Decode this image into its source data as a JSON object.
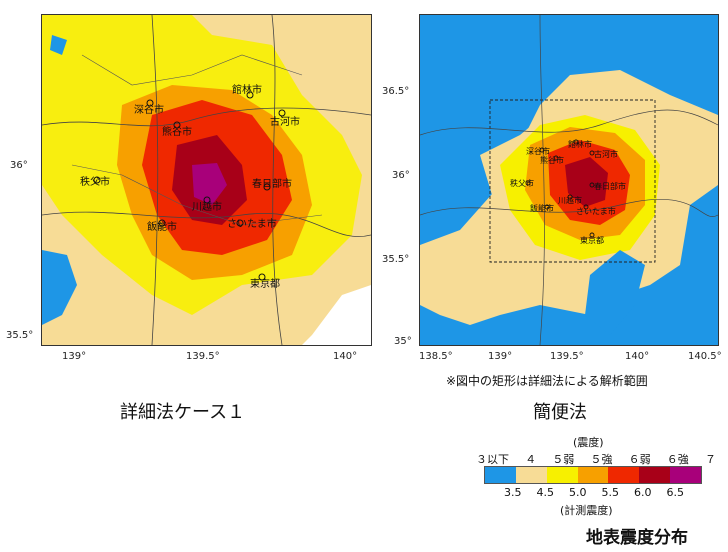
{
  "left_panel": {
    "caption": "詳細法ケース１",
    "lat_ticks": [
      "36°",
      "35.5°"
    ],
    "lon_ticks": [
      "139°",
      "139.5°",
      "140°"
    ],
    "cities": [
      "館林市",
      "深谷市",
      "古河市",
      "熊谷市",
      "秩父市",
      "春日部市",
      "川越市",
      "飯能市",
      "さいたま市",
      "東京都"
    ]
  },
  "right_panel": {
    "caption": "簡便法",
    "note": "※図中の矩形は詳細法による解析範囲",
    "lat_ticks": [
      "36.5°",
      "36°",
      "35.5°",
      "35°"
    ],
    "lon_ticks": [
      "138.5°",
      "139°",
      "139.5°",
      "140°",
      "140.5°"
    ],
    "cities": [
      "館林市",
      "深谷市",
      "古河市",
      "熊谷市",
      "秩父市",
      "春日部市",
      "川越市",
      "飯能市",
      "さいたま市",
      "東京都"
    ]
  },
  "legend": {
    "top_title": "(震度)",
    "intensity_classes": [
      "３以下",
      "４",
      "５弱",
      "５強",
      "６弱",
      "６強",
      "７"
    ],
    "boundary_values": [
      "3.5",
      "4.5",
      "5.0",
      "5.5",
      "6.0",
      "6.5"
    ],
    "bottom_title": "(計測震度)",
    "colors": [
      "#1e96e6",
      "#f7dc96",
      "#f7f000",
      "#f7a000",
      "#ef2800",
      "#a80018",
      "#a8007a"
    ]
  },
  "main_title": "地表震度分布"
}
